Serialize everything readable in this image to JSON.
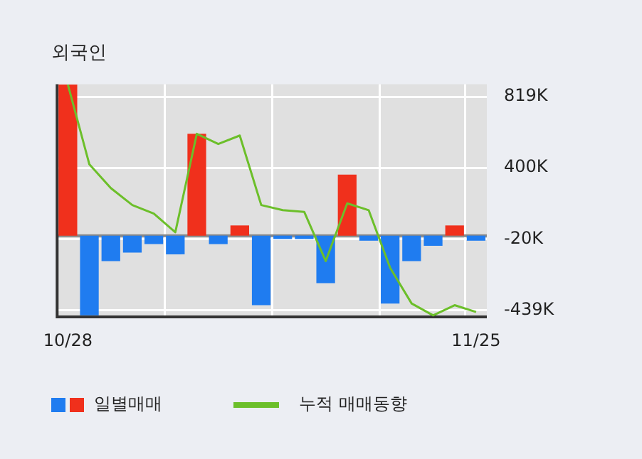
{
  "chart_data": {
    "type": "bar",
    "title": "외국인",
    "categories": [
      "10/28",
      null,
      null,
      null,
      null,
      null,
      null,
      null,
      null,
      null,
      null,
      null,
      null,
      null,
      null,
      null,
      null,
      null,
      null,
      "11/25"
    ],
    "series": [
      {
        "name": "일별매매",
        "colors": [
          "#f0301c",
          "#1f7cf0",
          "#1f7cf0",
          "#1f7cf0",
          "#1f7cf0",
          "#1f7cf0",
          "#f0301c",
          "#1f7cf0",
          "#f0301c",
          "#1f7cf0",
          "#1f7cf0",
          "#1f7cf0",
          "#1f7cf0",
          "#f0301c",
          "#1f7cf0",
          "#1f7cf0",
          "#1f7cf0",
          "#1f7cf0",
          "#f0301c",
          "#1f7cf0"
        ],
        "values": [
          890,
          -470,
          -150,
          -100,
          -50,
          -110,
          600,
          -50,
          60,
          -410,
          -20,
          -20,
          -280,
          360,
          -30,
          -400,
          -150,
          -60,
          60,
          -30
        ]
      },
      {
        "name": "누적 매매동향",
        "type": "line",
        "color": "#6cbf2a",
        "values": [
          890,
          420,
          280,
          180,
          130,
          20,
          600,
          540,
          590,
          180,
          150,
          140,
          -150,
          190,
          150,
          -190,
          -400,
          -470,
          -410,
          -450
        ]
      }
    ],
    "ylim": [
      -479,
      893
    ],
    "yticks": [
      {
        "value": 819,
        "label": "819K"
      },
      {
        "value": 400,
        "label": "400K"
      },
      {
        "value": -20,
        "label": "-20K"
      },
      {
        "value": -439,
        "label": "-439K"
      }
    ],
    "grid": true,
    "legend": "bottom",
    "marker": "none",
    "ref_lines": [
      {
        "axis": "y",
        "value": 0,
        "color": "#888888"
      }
    ]
  }
}
